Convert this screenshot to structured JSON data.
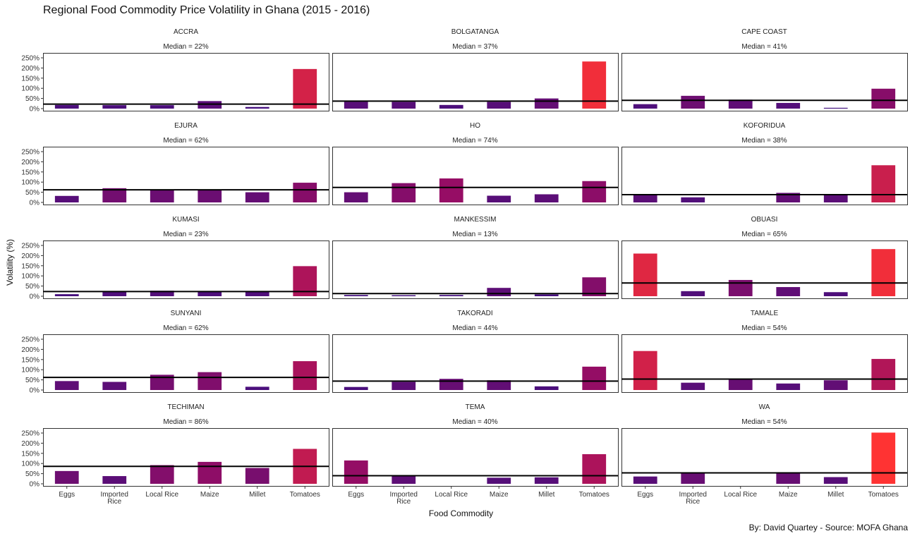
{
  "chart_data": {
    "type": "bar",
    "title": "Regional Food Commodity Price Volatility in Ghana (2015 - 2016)",
    "xlabel": "Food Commodity",
    "ylabel": "Volatility (%)",
    "caption": "By: David Quartey - Source: MOFA Ghana",
    "categories": [
      "Eggs",
      "Imported Rice",
      "Local Rice",
      "Maize",
      "Millet",
      "Tomatoes"
    ],
    "yticks": [
      "0%",
      "50%",
      "100%",
      "150%",
      "200%",
      "250%"
    ],
    "ylim": [
      0,
      250
    ],
    "grid": false,
    "color_scale": {
      "low": "#3f0f80",
      "mid": "#9b0d63",
      "high": "#ff3333"
    },
    "panels": [
      {
        "region": "ACCRA",
        "median_label": "Median = 22%",
        "median": 22,
        "values": [
          18,
          17,
          17,
          37,
          8,
          195
        ]
      },
      {
        "region": "BOLGATANGA",
        "median_label": "Median = 37%",
        "median": 37,
        "values": [
          34,
          33,
          18,
          33,
          50,
          232
        ]
      },
      {
        "region": "CAPE COAST",
        "median_label": "Median = 41%",
        "median": 41,
        "values": [
          22,
          63,
          44,
          28,
          4,
          98
        ]
      },
      {
        "region": "EJURA",
        "median_label": "Median = 62%",
        "median": 62,
        "values": [
          32,
          70,
          60,
          60,
          50,
          97
        ]
      },
      {
        "region": "HO",
        "median_label": "Median = 74%",
        "median": 74,
        "values": [
          50,
          95,
          118,
          33,
          40,
          105
        ]
      },
      {
        "region": "KOFORIDUA",
        "median_label": "Median = 38%",
        "median": 38,
        "values": [
          38,
          25,
          null,
          47,
          38,
          183
        ]
      },
      {
        "region": "KUMASI",
        "median_label": "Median = 23%",
        "median": 23,
        "values": [
          10,
          22,
          27,
          21,
          23,
          148
        ]
      },
      {
        "region": "MANKESSIM",
        "median_label": "Median = 13%",
        "median": 13,
        "values": [
          6,
          5,
          6,
          41,
          9,
          93
        ]
      },
      {
        "region": "OBUASI",
        "median_label": "Median = 65%",
        "median": 65,
        "values": [
          210,
          25,
          80,
          45,
          20,
          232
        ]
      },
      {
        "region": "SUNYANI",
        "median_label": "Median = 62%",
        "median": 62,
        "values": [
          44,
          40,
          75,
          88,
          16,
          142
        ]
      },
      {
        "region": "TAKORADI",
        "median_label": "Median = 44%",
        "median": 44,
        "values": [
          15,
          40,
          55,
          48,
          18,
          115
        ]
      },
      {
        "region": "TAMALE",
        "median_label": "Median = 54%",
        "median": 54,
        "values": [
          192,
          36,
          55,
          32,
          48,
          153
        ]
      },
      {
        "region": "TECHIMAN",
        "median_label": "Median = 86%",
        "median": 86,
        "values": [
          63,
          38,
          92,
          108,
          78,
          172
        ]
      },
      {
        "region": "TEMA",
        "median_label": "Median = 40%",
        "median": 40,
        "values": [
          115,
          42,
          null,
          30,
          32,
          146
        ]
      },
      {
        "region": "WA",
        "median_label": "Median = 54%",
        "median": 54,
        "values": [
          36,
          56,
          null,
          54,
          33,
          252
        ]
      }
    ]
  }
}
